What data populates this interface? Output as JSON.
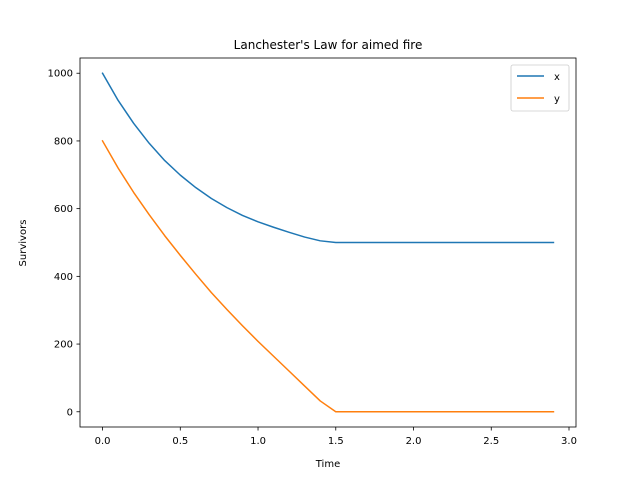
{
  "chart_data": {
    "type": "line",
    "title": "Lanchester's Law for aimed fire",
    "xlabel": "Time",
    "ylabel": "Survivors",
    "xlim": [
      -0.145,
      3.045
    ],
    "ylim": [
      -45,
      1045
    ],
    "xticks": [
      0.0,
      0.5,
      1.0,
      1.5,
      2.0,
      2.5,
      3.0
    ],
    "xtick_labels": [
      "0.0",
      "0.5",
      "1.0",
      "1.5",
      "2.0",
      "2.5",
      "3.0"
    ],
    "yticks": [
      0,
      200,
      400,
      600,
      800,
      1000
    ],
    "ytick_labels": [
      "0",
      "200",
      "400",
      "600",
      "800",
      "1000"
    ],
    "grid": false,
    "legend_position": "upper right",
    "series": [
      {
        "name": "x",
        "color": "#1f77b4",
        "x": [
          0,
          0.1,
          0.2,
          0.3,
          0.4,
          0.5,
          0.6,
          0.7,
          0.8,
          0.9,
          1.0,
          1.1,
          1.2,
          1.3,
          1.4,
          1.5,
          1.6,
          1.7,
          1.8,
          1.9,
          2.0,
          2.1,
          2.2,
          2.3,
          2.4,
          2.5,
          2.6,
          2.7,
          2.8,
          2.9
        ],
        "y": [
          1000,
          920,
          852,
          793,
          742,
          699,
          662,
          630,
          603,
          580,
          561,
          545,
          530,
          516,
          505,
          500,
          500,
          500,
          500,
          500,
          500,
          500,
          500,
          500,
          500,
          500,
          500,
          500,
          500,
          500
        ]
      },
      {
        "name": "y",
        "color": "#ff7f0e",
        "x": [
          0,
          0.1,
          0.2,
          0.3,
          0.4,
          0.5,
          0.6,
          0.7,
          0.8,
          0.9,
          1.0,
          1.1,
          1.2,
          1.3,
          1.4,
          1.5,
          1.6,
          1.7,
          1.8,
          1.9,
          2.0,
          2.1,
          2.2,
          2.3,
          2.4,
          2.5,
          2.6,
          2.7,
          2.8,
          2.9
        ],
        "y": [
          800,
          720,
          648,
          582,
          520,
          462,
          406,
          352,
          302,
          254,
          208,
          164,
          120,
          76,
          32,
          0,
          0,
          0,
          0,
          0,
          0,
          0,
          0,
          0,
          0,
          0,
          0,
          0,
          0,
          0
        ]
      }
    ]
  }
}
